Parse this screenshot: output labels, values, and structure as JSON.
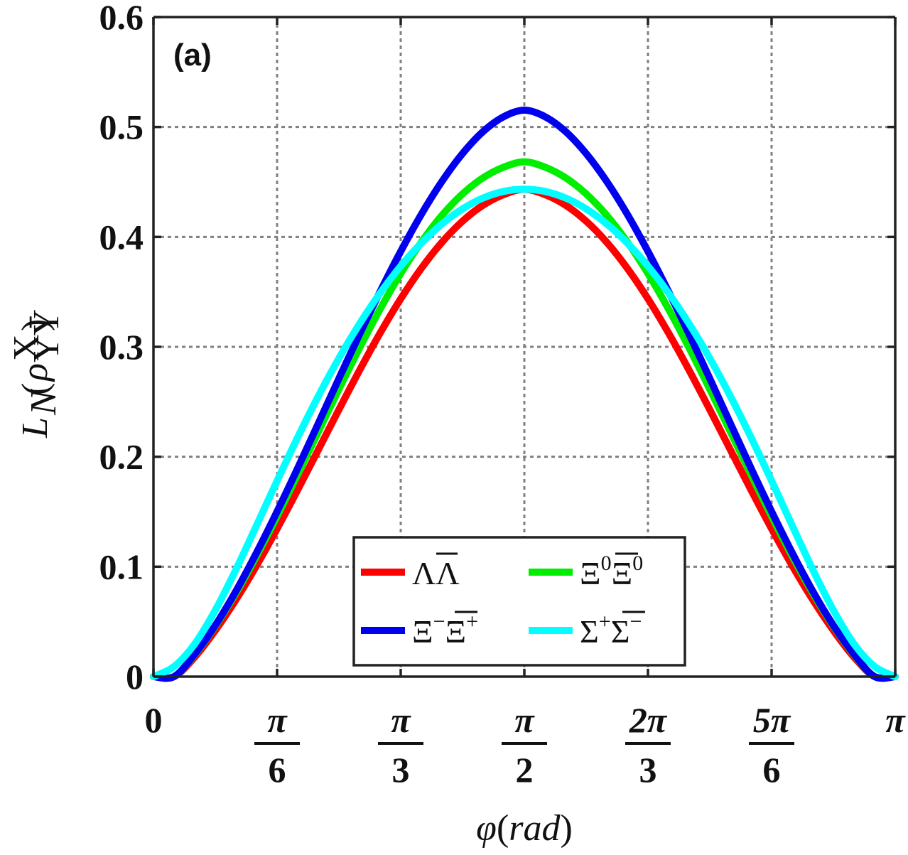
{
  "chart_data": {
    "type": "line",
    "panel_label": "(a)",
    "xlabel_parts": [
      "φ",
      "(",
      "rad",
      ")"
    ],
    "ylabel_parts": {
      "base": "L",
      "sub": "N",
      "rho": "ρ",
      "sup": "X",
      "lower": "YȲ"
    },
    "xlim": [
      0,
      3.14159265
    ],
    "ylim": [
      0,
      0.6
    ],
    "grid": true,
    "legend_position": "bottom-center",
    "y_ticks": [
      {
        "value": 0,
        "label": "0"
      },
      {
        "value": 0.1,
        "label": "0.1"
      },
      {
        "value": 0.2,
        "label": "0.2"
      },
      {
        "value": 0.3,
        "label": "0.3"
      },
      {
        "value": 0.4,
        "label": "0.4"
      },
      {
        "value": 0.5,
        "label": "0.5"
      },
      {
        "value": 0.6,
        "label": "0.6"
      }
    ],
    "x_ticks": [
      {
        "value": 0,
        "label": "0"
      },
      {
        "value": 0.5235988,
        "num": "π",
        "den": "6"
      },
      {
        "value": 1.0471976,
        "num": "π",
        "den": "3"
      },
      {
        "value": 1.5707963,
        "num": "π",
        "den": "2"
      },
      {
        "value": 2.0943951,
        "num": "2π",
        "den": "3"
      },
      {
        "value": 2.6179939,
        "num": "5π",
        "den": "6"
      },
      {
        "value": 3.1415927,
        "label": "π"
      }
    ],
    "series": [
      {
        "name": "ΛΛ̄",
        "legend": {
          "a": "Λ",
          "b": "Λ",
          "a_sup": "",
          "b_sup": ""
        },
        "color": "#ff0000",
        "x": [
          0.0,
          0.0873,
          0.1745,
          0.2618,
          0.3491,
          0.4363,
          0.5236,
          0.6109,
          0.6981,
          0.7854,
          0.8727,
          0.9599,
          1.0472,
          1.1345,
          1.2217,
          1.309,
          1.3963,
          1.4835,
          1.5708,
          1.6581,
          1.7453,
          1.8326,
          1.9199,
          2.0071,
          2.0944,
          2.1817,
          2.2689,
          2.3562,
          2.4435,
          2.5307,
          2.618,
          2.7053,
          2.7925,
          2.8798,
          2.9671,
          3.0543,
          3.1416
        ],
        "y": [
          0.0,
          0.0,
          0.0177,
          0.042,
          0.0699,
          0.1009,
          0.1345,
          0.1699,
          0.2063,
          0.2429,
          0.2786,
          0.3125,
          0.3437,
          0.3714,
          0.3951,
          0.4143,
          0.4289,
          0.4385,
          0.4433,
          0.4385,
          0.4289,
          0.4143,
          0.3951,
          0.3714,
          0.3437,
          0.3125,
          0.2786,
          0.2429,
          0.2063,
          0.1699,
          0.1345,
          0.1009,
          0.0699,
          0.042,
          0.0177,
          0.0,
          0.0
        ]
      },
      {
        "name": "Ξ⁰Ξ̄⁰",
        "legend": {
          "a": "Ξ",
          "b": "Ξ",
          "a_sup": "0",
          "b_sup": "0"
        },
        "color": "#00ee00",
        "x": [
          0.0,
          0.0873,
          0.1745,
          0.2618,
          0.3491,
          0.4363,
          0.5236,
          0.6109,
          0.6981,
          0.7854,
          0.8727,
          0.9599,
          1.0472,
          1.1345,
          1.2217,
          1.309,
          1.3963,
          1.4835,
          1.5708,
          1.6581,
          1.7453,
          1.8326,
          1.9199,
          2.0071,
          2.0944,
          2.1817,
          2.2689,
          2.3562,
          2.4435,
          2.5307,
          2.618,
          2.7053,
          2.7925,
          2.8798,
          2.9671,
          3.0543,
          3.1416
        ],
        "y": [
          0.0,
          0.0,
          0.0198,
          0.0458,
          0.0759,
          0.1095,
          0.1458,
          0.1838,
          0.2227,
          0.2614,
          0.2989,
          0.3343,
          0.3667,
          0.3953,
          0.4196,
          0.4391,
          0.4538,
          0.4635,
          0.4683,
          0.4635,
          0.4538,
          0.4391,
          0.4196,
          0.3953,
          0.3667,
          0.3343,
          0.2989,
          0.2614,
          0.2227,
          0.1838,
          0.1458,
          0.1095,
          0.0759,
          0.0458,
          0.0198,
          0.0,
          0.0
        ]
      },
      {
        "name": "Ξ⁻Ξ̄⁺",
        "legend": {
          "a": "Ξ",
          "b": "Ξ",
          "a_sup": "−",
          "b_sup": "+"
        },
        "color": "#0000ee",
        "x": [
          0.0,
          0.0873,
          0.1745,
          0.2618,
          0.3491,
          0.4363,
          0.5236,
          0.6109,
          0.6981,
          0.7854,
          0.8727,
          0.9599,
          1.0472,
          1.1345,
          1.2217,
          1.309,
          1.3963,
          1.4835,
          1.5708,
          1.6581,
          1.7453,
          1.8326,
          1.9199,
          2.0071,
          2.0944,
          2.1817,
          2.2689,
          2.3562,
          2.4435,
          2.5307,
          2.618,
          2.7053,
          2.7925,
          2.8798,
          2.9671,
          3.0543,
          3.1416
        ],
        "y": [
          0.0,
          0.0,
          0.0204,
          0.0466,
          0.0777,
          0.1126,
          0.1502,
          0.1897,
          0.2303,
          0.2712,
          0.3114,
          0.3502,
          0.3868,
          0.4205,
          0.4504,
          0.4758,
          0.4959,
          0.5094,
          0.5153,
          0.5094,
          0.4959,
          0.4758,
          0.4504,
          0.4205,
          0.3868,
          0.3502,
          0.3114,
          0.2712,
          0.2303,
          0.1897,
          0.1502,
          0.1126,
          0.0777,
          0.0466,
          0.0204,
          0.0,
          0.0
        ]
      },
      {
        "name": "Σ⁺Σ̄⁻",
        "legend": {
          "a": "Σ",
          "b": "Σ",
          "a_sup": "+",
          "b_sup": "−"
        },
        "color": "#00ffff",
        "x": [
          0.0,
          0.0873,
          0.1745,
          0.2618,
          0.3491,
          0.4363,
          0.5236,
          0.6109,
          0.6981,
          0.7854,
          0.8727,
          0.9599,
          1.0472,
          1.1345,
          1.2217,
          1.309,
          1.3963,
          1.4835,
          1.5708,
          1.6581,
          1.7453,
          1.8326,
          1.9199,
          2.0071,
          2.0944,
          2.1817,
          2.2689,
          2.3562,
          2.4435,
          2.5307,
          2.618,
          2.7053,
          2.7925,
          2.8798,
          2.9671,
          3.0543,
          3.1416
        ],
        "y": [
          0.0,
          0.0092,
          0.0297,
          0.0604,
          0.0973,
          0.1374,
          0.1781,
          0.2177,
          0.2551,
          0.2896,
          0.3209,
          0.3489,
          0.3734,
          0.3944,
          0.4118,
          0.4255,
          0.4354,
          0.4414,
          0.4434,
          0.4414,
          0.4354,
          0.4255,
          0.4118,
          0.3944,
          0.3734,
          0.3489,
          0.3209,
          0.2896,
          0.2551,
          0.2177,
          0.1781,
          0.1374,
          0.0973,
          0.0604,
          0.0297,
          0.0092,
          0.0
        ]
      }
    ]
  }
}
